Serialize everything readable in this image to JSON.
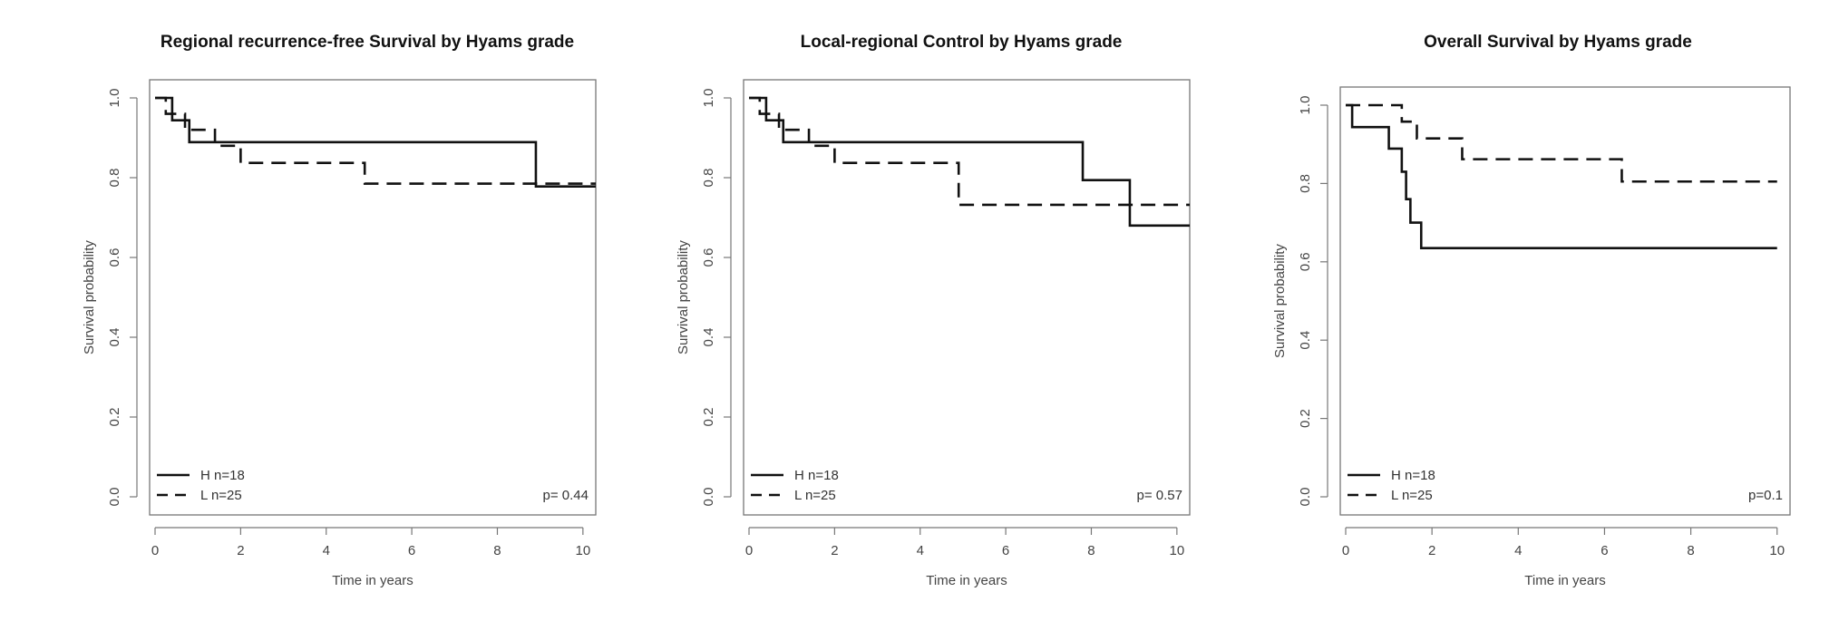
{
  "chart_data": [
    {
      "type": "line",
      "title": "Regional recurrence-free Survival by Hyams grade",
      "xlabel": "Time in years",
      "ylabel": "Survival probability",
      "xlim": [
        0,
        10.3
      ],
      "ylim": [
        0,
        1
      ],
      "xticks": [
        "0",
        "2",
        "4",
        "6",
        "8",
        "10"
      ],
      "yticks": [
        "0.0",
        "0.2",
        "0.4",
        "0.6",
        "0.8",
        "1.0"
      ],
      "grid": false,
      "legend_position": "bottom-left",
      "p_value": "p= 0.44",
      "series": [
        {
          "name": "H n=18",
          "style": "solid",
          "x": [
            0,
            0.4,
            0.8,
            8.9,
            10.3
          ],
          "y": [
            1.0,
            0.944,
            0.889,
            0.778,
            0.778
          ]
        },
        {
          "name": "L n=25",
          "style": "dashed",
          "x": [
            0,
            0.25,
            0.7,
            1.4,
            2.0,
            4.9,
            10.3
          ],
          "y": [
            1.0,
            0.96,
            0.92,
            0.88,
            0.837,
            0.785,
            0.785
          ]
        }
      ]
    },
    {
      "type": "line",
      "title": "Local-regional Control by Hyams grade",
      "xlabel": "Time in years",
      "ylabel": "Survival probability",
      "xlim": [
        0,
        10.3
      ],
      "ylim": [
        0,
        1
      ],
      "xticks": [
        "0",
        "2",
        "4",
        "6",
        "8",
        "10"
      ],
      "yticks": [
        "0.0",
        "0.2",
        "0.4",
        "0.6",
        "0.8",
        "1.0"
      ],
      "grid": false,
      "legend_position": "bottom-left",
      "p_value": "p= 0.57",
      "series": [
        {
          "name": "H n=18",
          "style": "solid",
          "x": [
            0,
            0.4,
            0.8,
            7.8,
            8.9,
            10.3
          ],
          "y": [
            1.0,
            0.944,
            0.889,
            0.794,
            0.68,
            0.68
          ]
        },
        {
          "name": "L n=25",
          "style": "dashed",
          "x": [
            0,
            0.25,
            0.7,
            1.4,
            2.0,
            4.9,
            10.3
          ],
          "y": [
            1.0,
            0.96,
            0.92,
            0.88,
            0.837,
            0.732,
            0.732
          ]
        }
      ]
    },
    {
      "type": "line",
      "title": "Overall Survival by Hyams grade",
      "xlabel": "Time in years",
      "ylabel": "Survival probability",
      "xlim": [
        0,
        10.3
      ],
      "ylim": [
        0,
        1
      ],
      "xticks": [
        "0",
        "2",
        "4",
        "6",
        "8",
        "10"
      ],
      "yticks": [
        "0.0",
        "0.2",
        "0.4",
        "0.6",
        "0.8",
        "1.0"
      ],
      "grid": false,
      "legend_position": "bottom-left",
      "p_value": "p=0.1",
      "series": [
        {
          "name": "H n=18",
          "style": "solid",
          "x": [
            0,
            0.15,
            1.0,
            1.3,
            1.4,
            1.5,
            1.75,
            10.0
          ],
          "y": [
            1.0,
            0.944,
            0.889,
            0.83,
            0.76,
            0.7,
            0.635,
            0.635
          ]
        },
        {
          "name": "L n=25",
          "style": "dashed",
          "x": [
            0,
            1.3,
            1.65,
            2.7,
            6.4,
            10.0
          ],
          "y": [
            1.0,
            0.958,
            0.915,
            0.862,
            0.805,
            0.805
          ]
        }
      ]
    }
  ]
}
